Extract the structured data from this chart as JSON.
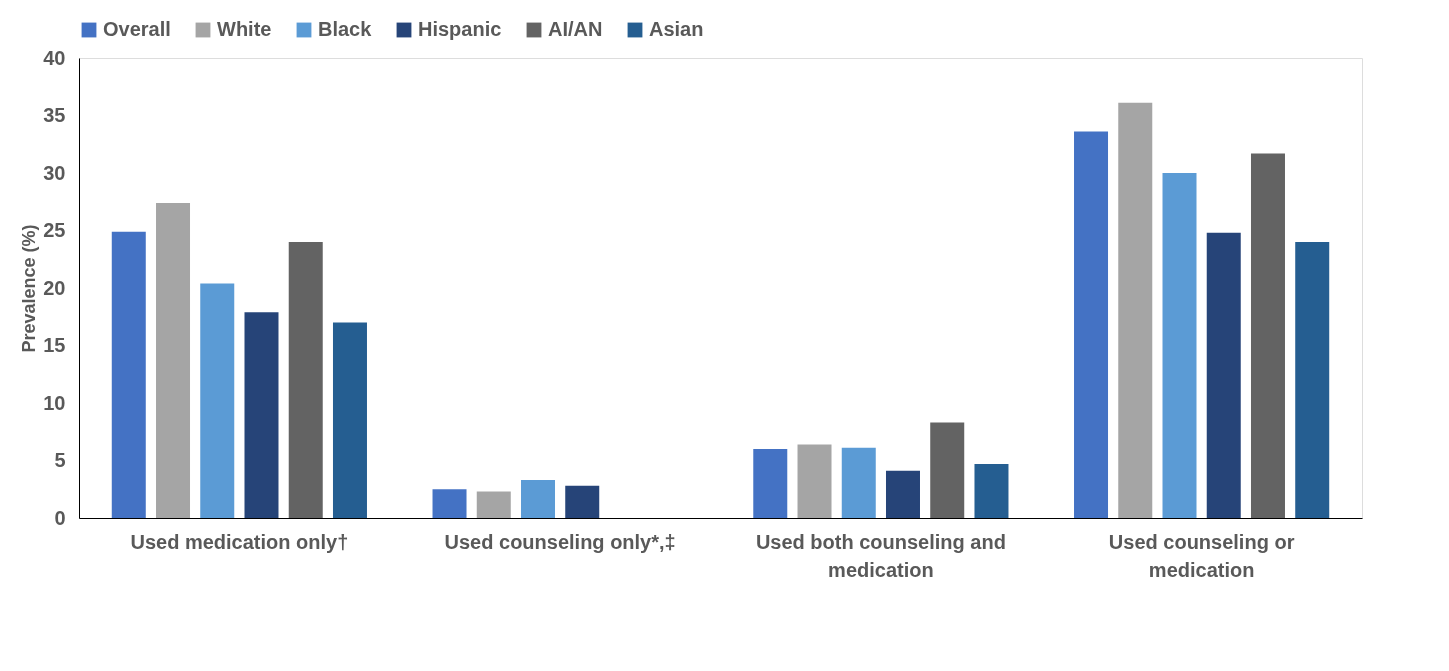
{
  "chart_data": {
    "type": "bar",
    "ylabel": "Prevalence (%)",
    "categories": [
      "Used medication only†",
      "Used counseling only*,‡",
      "Used both counseling and medication",
      "Used counseling or medication"
    ],
    "series": [
      {
        "name": "Overall",
        "color": "#4472c4",
        "values": [
          24.9,
          2.5,
          6.0,
          33.6
        ]
      },
      {
        "name": "White",
        "color": "#a5a5a5",
        "values": [
          27.4,
          2.3,
          6.4,
          36.1
        ]
      },
      {
        "name": "Black",
        "color": "#5b9bd5",
        "values": [
          20.4,
          3.3,
          6.1,
          30.0
        ]
      },
      {
        "name": "Hispanic",
        "color": "#264478",
        "values": [
          17.9,
          2.8,
          4.1,
          24.8
        ]
      },
      {
        "name": "AI/AN",
        "color": "#636363",
        "values": [
          24.0,
          null,
          8.3,
          31.7
        ]
      },
      {
        "name": "Asian",
        "color": "#255e91",
        "values": [
          17.0,
          null,
          4.7,
          24.0
        ]
      }
    ],
    "ylim": [
      0,
      40
    ],
    "yticks": [
      0,
      5,
      10,
      15,
      20,
      25,
      30,
      35,
      40
    ],
    "grid": false,
    "legend": "top"
  }
}
